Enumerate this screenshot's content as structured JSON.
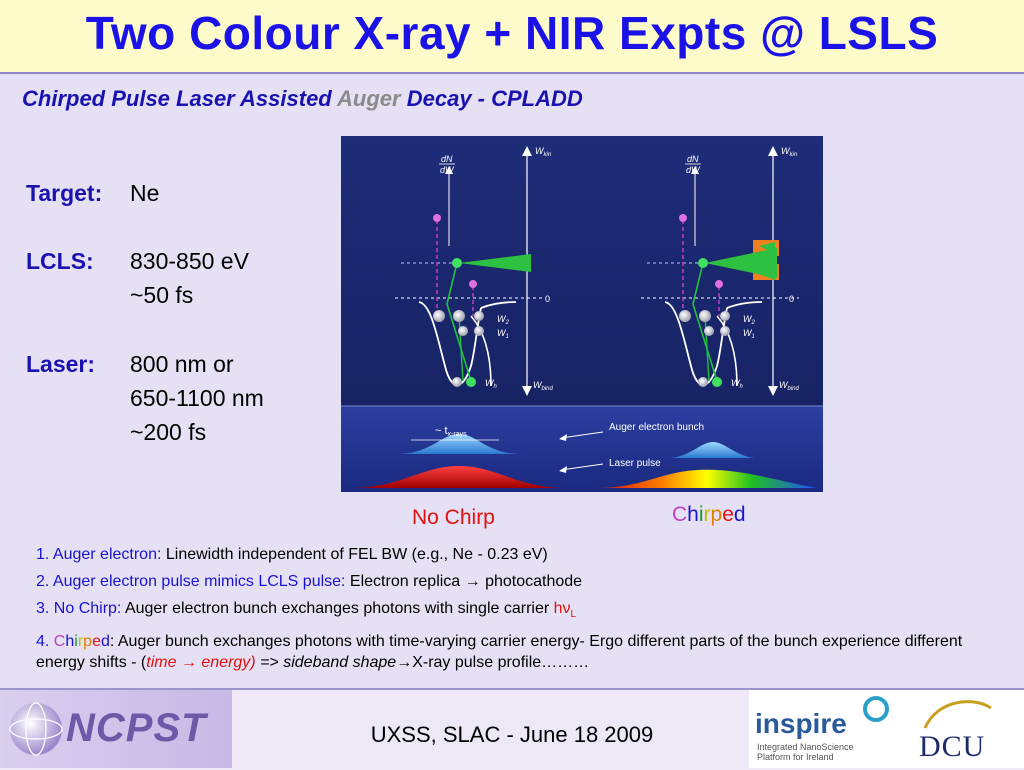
{
  "title": "Two Colour X-ray + NIR Expts @ LSLS",
  "subtitle": {
    "part1": "Chirped Pulse Laser Assisted ",
    "part2": "Auger",
    "part3": " Decay - CPLADD"
  },
  "specs": {
    "target_label": "Target:",
    "target_value": "Ne",
    "lcls_label": "LCLS:",
    "lcls_value1": "830-850 eV",
    "lcls_value2": "~50 fs",
    "laser_label": "Laser:",
    "laser_value1": "800 nm or",
    "laser_value2": "650-1100 nm",
    "laser_value3": "~200 fs"
  },
  "diagram": {
    "dn_num": "dN",
    "dn_den": "dW",
    "w_kin": "W",
    "w_kin_sub": "kin",
    "zero": "0",
    "w2": "W",
    "w2_sub": "2",
    "w1": "W",
    "w1_sub": "1",
    "wh": "W",
    "wh_sub": "h",
    "w_bind": "W",
    "w_bind_sub": "bind",
    "t_xrays": "~ t",
    "t_xrays_sub": "x-rays",
    "auger_bunch": "Auger electron bunch",
    "laser_pulse": "Laser pulse"
  },
  "captions": {
    "no_chirp": "No Chirp",
    "chirped_letters": [
      "C",
      "h",
      "i",
      "r",
      "p",
      "e",
      "d"
    ],
    "chirped_colors": [
      "#c040c0",
      "#1a12d0",
      "#10a020",
      "#c0c000",
      "#e08000",
      "#e01010",
      "#1a12d0"
    ]
  },
  "notes": {
    "n1_head": "1. Auger electron:",
    "n1_body": " Linewidth independent of FEL BW (e.g., Ne - 0.23 eV)",
    "n2_head": "2. Auger electron pulse mimics LCLS pulse:",
    "n2_body": " Electron replica → photocathode",
    "n3_head": "3. No Chirp:",
    "n3_body": " Auger electron bunch exchanges photons with single carrier ",
    "n3_h": "hν",
    "n3_sub": "L",
    "n4_num": "4. ",
    "n4_body1": ": Auger bunch exchanges photons with time-varying carrier energy- Ergo different parts of the bunch experience different energy shifts - (",
    "n4_italic_red": "time → energy)",
    "n4_italic": " => sideband shape",
    "n4_body2": "→X-ray pulse profile………"
  },
  "footer": {
    "ncpst": "NCPST",
    "text": "UXSS, SLAC - June 18 2009",
    "inspire": "inspire",
    "inspire_sub1": "Integrated NanoScience",
    "inspire_sub2": "Platform for Ireland",
    "dcu": "DCU"
  },
  "colors": {
    "title": "#1a12e6",
    "label": "#1a12b0",
    "diagram_bg": "#1c2a7a",
    "panel_bg": "#e6e0f4",
    "title_bg": "#fdfbc9"
  }
}
